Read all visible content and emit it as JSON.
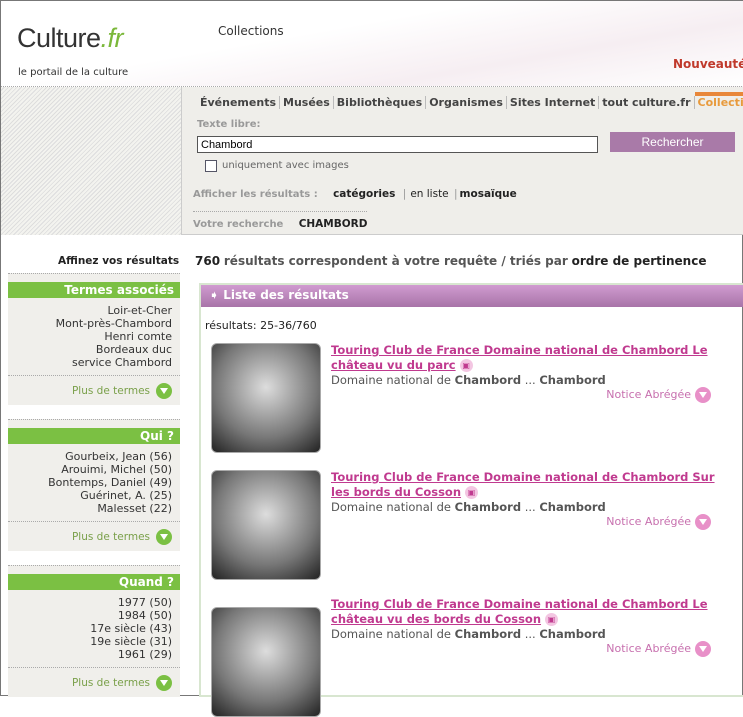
{
  "header": {
    "logo_main": "Culture",
    "logo_ext": ".fr",
    "tagline": "le portail de la culture",
    "section": "Collections",
    "news": "Nouveautés"
  },
  "nav": [
    "Événements",
    "Musées",
    "Bibliothèques",
    "Organismes",
    "Sites Internet",
    "tout culture.fr",
    "Collections"
  ],
  "search": {
    "label": "Texte libre:",
    "value": "Chambord",
    "button": "Rechercher",
    "checkbox_label": "uniquement avec images",
    "display_label": "Afficher les résultats :",
    "display_options": [
      "catégories",
      "en liste",
      "mosaïque"
    ],
    "your_search_label": "Votre recherche",
    "your_search_value": "CHAMBORD"
  },
  "refine": {
    "title": "Affinez vos résultats",
    "more": "Plus de termes",
    "blocks": [
      {
        "title": "Termes associés",
        "items": [
          "Loir-et-Cher",
          "Mont-près-Chambord",
          "Henri comte",
          "Bordeaux duc",
          "service Chambord"
        ]
      },
      {
        "title": "Qui ?",
        "items": [
          "Gourbeix, Jean (56)",
          "Arouimi, Michel (50)",
          "Bontemps, Daniel (49)",
          "Guérinet, A. (25)",
          "Malesset (22)"
        ]
      },
      {
        "title": "Quand ?",
        "items": [
          "1977 (50)",
          "1984 (50)",
          "17e siècle (43)",
          "19e siècle (31)",
          "1961 (29)"
        ]
      }
    ]
  },
  "summary": {
    "count": "760",
    "text": "résultats correspondent à votre requête / triés par",
    "sort": "ordre de pertinence"
  },
  "results": {
    "header": "Liste des résultats",
    "range": "résultats: 25-36/760",
    "notice": "Notice Abrégée",
    "items": [
      {
        "title": "Touring Club de France Domaine national de Chambord Le château vu du parc",
        "desc_pre": "Domaine national de",
        "desc_b1": "Chambord",
        "desc_mid": "...",
        "desc_b2": "Chambord"
      },
      {
        "title": "Touring Club de France Domaine national de Chambord Sur les bords du Cosson",
        "desc_pre": "Domaine national de",
        "desc_b1": "Chambord",
        "desc_mid": "...",
        "desc_b2": "Chambord"
      },
      {
        "title": "Touring Club de France Domaine national de Chambord Le château vu des bords du Cosson",
        "desc_pre": "Domaine national de",
        "desc_b1": "Chambord",
        "desc_mid": "...",
        "desc_b2": "Chambord"
      }
    ]
  }
}
